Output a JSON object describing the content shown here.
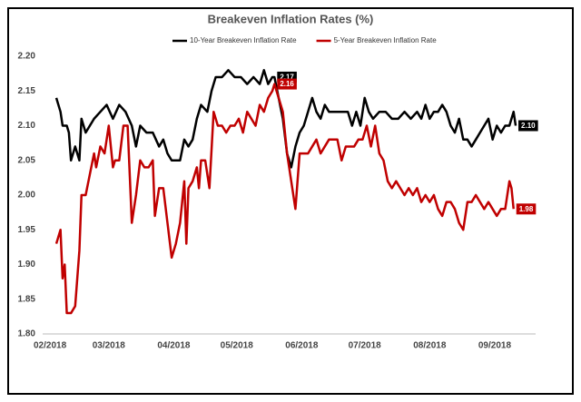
{
  "chart_data": {
    "type": "line",
    "title": "Breakeven Inflation Rates (%)",
    "xlim": [
      -3.5,
      231.5
    ],
    "ylim": [
      1.8,
      2.2
    ],
    "xticks": [
      {
        "value": 0,
        "label": "02/2018"
      },
      {
        "value": 28,
        "label": "03/2018"
      },
      {
        "value": 59,
        "label": "04/2018"
      },
      {
        "value": 89,
        "label": "05/2018"
      },
      {
        "value": 120,
        "label": "06/2018"
      },
      {
        "value": 150,
        "label": "07/2018"
      },
      {
        "value": 181,
        "label": "08/2018"
      },
      {
        "value": 212,
        "label": "09/2018"
      }
    ],
    "yticks": [
      {
        "value": 1.8,
        "label": "1.80"
      },
      {
        "value": 1.85,
        "label": "1.85"
      },
      {
        "value": 1.9,
        "label": "1.90"
      },
      {
        "value": 1.95,
        "label": "1.95"
      },
      {
        "value": 2.0,
        "label": "2.00"
      },
      {
        "value": 2.05,
        "label": "2.05"
      },
      {
        "value": 2.1,
        "label": "2.10"
      },
      {
        "value": 2.15,
        "label": "2.15"
      },
      {
        "value": 2.2,
        "label": "2.20"
      }
    ],
    "grid": false,
    "series": [
      {
        "name": "10-Year Breakeven Inflation Rate",
        "color": "#000000",
        "x": [
          3,
          5,
          6,
          8,
          9,
          10,
          12,
          13,
          14,
          15,
          17,
          19,
          21,
          24,
          27,
          30,
          33,
          36,
          39,
          41,
          43,
          46,
          49,
          52,
          54,
          56,
          58,
          62,
          64,
          66,
          68,
          70,
          72,
          75,
          77,
          79,
          82,
          85,
          88,
          91,
          94,
          97,
          100,
          102,
          104,
          106,
          107,
          109,
          111,
          113,
          115,
          117,
          119,
          121,
          123,
          125,
          127,
          129,
          131,
          133,
          136,
          139,
          142,
          144,
          146,
          148,
          150,
          152,
          154,
          157,
          160,
          163,
          166,
          169,
          172,
          175,
          177,
          179,
          181,
          183,
          185,
          187,
          189,
          191,
          193,
          195,
          197,
          199,
          201,
          203,
          205,
          207,
          209,
          211,
          213,
          215,
          217,
          219,
          221,
          222
        ],
        "values": [
          2.14,
          2.12,
          2.1,
          2.1,
          2.09,
          2.05,
          2.07,
          2.06,
          2.05,
          2.11,
          2.09,
          2.1,
          2.11,
          2.12,
          2.13,
          2.11,
          2.13,
          2.12,
          2.1,
          2.07,
          2.1,
          2.09,
          2.09,
          2.07,
          2.08,
          2.06,
          2.05,
          2.05,
          2.08,
          2.07,
          2.08,
          2.11,
          2.13,
          2.12,
          2.15,
          2.17,
          2.17,
          2.18,
          2.17,
          2.17,
          2.16,
          2.17,
          2.16,
          2.18,
          2.16,
          2.17,
          2.17,
          2.14,
          2.11,
          2.06,
          2.04,
          2.07,
          2.09,
          2.1,
          2.12,
          2.14,
          2.12,
          2.11,
          2.13,
          2.12,
          2.12,
          2.12,
          2.12,
          2.1,
          2.12,
          2.1,
          2.14,
          2.12,
          2.11,
          2.12,
          2.12,
          2.11,
          2.11,
          2.12,
          2.11,
          2.12,
          2.11,
          2.13,
          2.11,
          2.12,
          2.12,
          2.13,
          2.12,
          2.1,
          2.09,
          2.11,
          2.08,
          2.08,
          2.07,
          2.08,
          2.09,
          2.1,
          2.11,
          2.08,
          2.1,
          2.09,
          2.1,
          2.1,
          2.12,
          2.1
        ]
      },
      {
        "name": "5-Year Breakeven Inflation Rate",
        "color": "#c00000",
        "x": [
          3,
          5,
          6,
          7,
          8,
          10,
          12,
          14,
          15,
          17,
          19,
          21,
          22,
          24,
          26,
          28,
          30,
          31,
          33,
          35,
          37,
          39,
          41,
          43,
          45,
          47,
          49,
          50,
          52,
          54,
          56,
          58,
          60,
          62,
          64,
          65,
          66,
          68,
          70,
          71,
          72,
          74,
          76,
          78,
          80,
          82,
          84,
          86,
          88,
          90,
          92,
          94,
          96,
          98,
          100,
          102,
          104,
          106,
          107,
          109,
          111,
          113,
          115,
          117,
          119,
          121,
          123,
          125,
          127,
          129,
          131,
          133,
          135,
          137,
          139,
          141,
          143,
          145,
          147,
          149,
          151,
          153,
          155,
          157,
          159,
          161,
          163,
          165,
          167,
          169,
          171,
          173,
          175,
          177,
          179,
          181,
          183,
          185,
          187,
          189,
          191,
          193,
          195,
          197,
          199,
          201,
          203,
          205,
          207,
          209,
          211,
          213,
          215,
          217,
          219,
          220,
          221
        ],
        "values": [
          1.93,
          1.95,
          1.88,
          1.9,
          1.83,
          1.83,
          1.84,
          1.92,
          2.0,
          2.0,
          2.03,
          2.06,
          2.04,
          2.07,
          2.06,
          2.1,
          2.04,
          2.05,
          2.05,
          2.1,
          2.1,
          1.96,
          2.0,
          2.05,
          2.04,
          2.04,
          2.05,
          1.97,
          2.01,
          2.01,
          1.96,
          1.91,
          1.93,
          1.96,
          2.02,
          1.93,
          2.01,
          2.02,
          2.04,
          2.01,
          2.05,
          2.05,
          2.01,
          2.12,
          2.1,
          2.1,
          2.09,
          2.1,
          2.1,
          2.11,
          2.09,
          2.12,
          2.11,
          2.1,
          2.13,
          2.12,
          2.14,
          2.15,
          2.16,
          2.14,
          2.12,
          2.06,
          2.02,
          1.98,
          2.06,
          2.06,
          2.06,
          2.07,
          2.08,
          2.06,
          2.07,
          2.08,
          2.08,
          2.08,
          2.05,
          2.07,
          2.07,
          2.07,
          2.08,
          2.08,
          2.1,
          2.07,
          2.1,
          2.06,
          2.05,
          2.02,
          2.01,
          2.02,
          2.01,
          2.0,
          2.01,
          2.0,
          2.01,
          1.99,
          2.0,
          1.99,
          2.0,
          1.98,
          1.97,
          1.99,
          1.99,
          1.98,
          1.96,
          1.95,
          1.99,
          1.99,
          2.0,
          1.99,
          1.98,
          1.99,
          1.98,
          1.97,
          1.98,
          1.98,
          2.02,
          2.01,
          1.98
        ]
      }
    ],
    "annotations": [
      {
        "x": 107,
        "y": 2.17,
        "label": "2.17",
        "color": "#000000"
      },
      {
        "x": 107,
        "y": 2.16,
        "label": "2.16",
        "color": "#c00000"
      },
      {
        "x": 222,
        "y": 2.1,
        "label": "2.10",
        "color": "#000000"
      },
      {
        "x": 221,
        "y": 1.98,
        "label": "1.98",
        "color": "#c00000"
      }
    ]
  }
}
